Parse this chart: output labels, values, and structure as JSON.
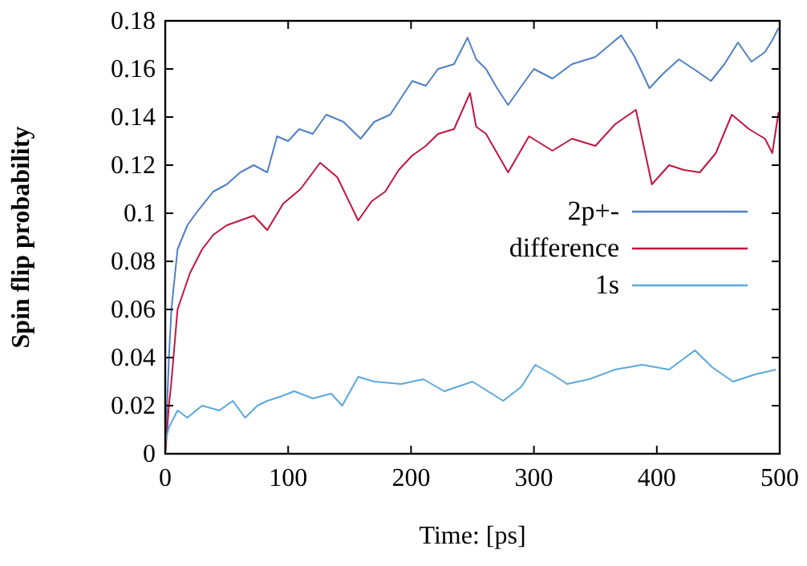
{
  "chart_data": {
    "type": "line",
    "xlabel": "Time: [ps]",
    "ylabel": "Spin flip probability",
    "xlim": [
      0,
      500
    ],
    "ylim": [
      0,
      0.18
    ],
    "xticks": [
      0,
      100,
      200,
      300,
      400,
      500
    ],
    "yticks": [
      0,
      0.02,
      0.04,
      0.06,
      0.08,
      0.1,
      0.12,
      0.14,
      0.16,
      0.18
    ],
    "legend": "right",
    "grid": false,
    "line_style": "solid",
    "marker": "none",
    "series": [
      {
        "name": "2p+-",
        "color": "#4f7fc4",
        "x": [
          0,
          3,
          5,
          10,
          18,
          25,
          39,
          50,
          61,
          72,
          83,
          91,
          100,
          109,
          120,
          131,
          145,
          159,
          170,
          183,
          201,
          212,
          222,
          235,
          246,
          253,
          261,
          270,
          279,
          290,
          300,
          315,
          331,
          350,
          371,
          382,
          394,
          405,
          418,
          430,
          444,
          455,
          466,
          477,
          488,
          494,
          499
        ],
        "values": [
          0,
          0.04,
          0.06,
          0.085,
          0.095,
          0.1,
          0.109,
          0.112,
          0.117,
          0.12,
          0.117,
          0.132,
          0.13,
          0.135,
          0.133,
          0.141,
          0.138,
          0.131,
          0.138,
          0.141,
          0.155,
          0.153,
          0.16,
          0.162,
          0.173,
          0.164,
          0.16,
          0.152,
          0.145,
          0.153,
          0.16,
          0.156,
          0.162,
          0.165,
          0.174,
          0.165,
          0.152,
          0.158,
          0.164,
          0.16,
          0.155,
          0.162,
          0.171,
          0.163,
          0.167,
          0.172,
          0.177
        ]
      },
      {
        "name": "difference",
        "color": "#c0153f",
        "x": [
          0,
          3,
          5,
          10,
          20,
          30,
          39,
          50,
          61,
          72,
          83,
          96,
          110,
          126,
          140,
          157,
          168,
          179,
          190,
          201,
          212,
          222,
          235,
          248,
          253,
          261,
          270,
          279,
          296,
          315,
          331,
          350,
          366,
          383,
          396,
          410,
          422,
          435,
          448,
          461,
          475,
          488,
          494,
          499
        ],
        "values": [
          0,
          0.02,
          0.03,
          0.06,
          0.075,
          0.085,
          0.091,
          0.095,
          0.097,
          0.099,
          0.093,
          0.104,
          0.11,
          0.121,
          0.115,
          0.097,
          0.105,
          0.109,
          0.118,
          0.124,
          0.128,
          0.133,
          0.135,
          0.15,
          0.136,
          0.133,
          0.125,
          0.117,
          0.132,
          0.126,
          0.131,
          0.128,
          0.137,
          0.143,
          0.112,
          0.12,
          0.118,
          0.117,
          0.125,
          0.141,
          0.135,
          0.131,
          0.125,
          0.142
        ]
      },
      {
        "name": "1s",
        "color": "#5aa8dc",
        "x": [
          0,
          3,
          10,
          18,
          30,
          44,
          55,
          65,
          75,
          83,
          95,
          105,
          120,
          135,
          144,
          157,
          170,
          192,
          210,
          227,
          250,
          275,
          290,
          301,
          315,
          327,
          345,
          366,
          388,
          410,
          431,
          445,
          462,
          480,
          497
        ],
        "values": [
          0.005,
          0.011,
          0.018,
          0.015,
          0.02,
          0.018,
          0.022,
          0.015,
          0.02,
          0.022,
          0.024,
          0.026,
          0.023,
          0.025,
          0.02,
          0.032,
          0.03,
          0.029,
          0.031,
          0.026,
          0.03,
          0.022,
          0.028,
          0.037,
          0.033,
          0.029,
          0.031,
          0.035,
          0.037,
          0.035,
          0.043,
          0.036,
          0.03,
          0.033,
          0.035
        ]
      }
    ]
  }
}
